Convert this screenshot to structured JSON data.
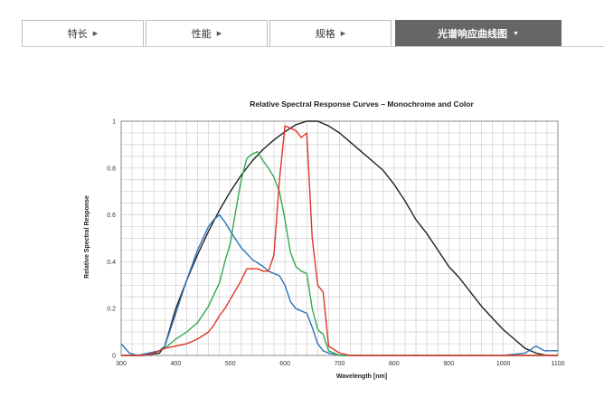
{
  "tabs": [
    {
      "label": "特长",
      "arrow": "▶",
      "active": false
    },
    {
      "label": "性能",
      "arrow": "▶",
      "active": false
    },
    {
      "label": "规格",
      "arrow": "▶",
      "active": false
    },
    {
      "label": "光谱响应曲线图",
      "arrow": "▼",
      "active": true
    }
  ],
  "chart_data": {
    "type": "line",
    "title": "Relative Spectral Response Curves – Monochrome and Color",
    "xlabel": "Wavelength [nm]",
    "ylabel": "Relative Spectral Response",
    "xlim": [
      300,
      1100
    ],
    "ylim": [
      0,
      1
    ],
    "x_ticks": [
      "300",
      "400",
      "500",
      "600",
      "700",
      "800",
      "900",
      "1000",
      "1100"
    ],
    "y_ticks": [
      "0",
      "0.2",
      "0.4",
      "0.6",
      "0.8",
      "1"
    ],
    "grid": true,
    "legend": "none",
    "series": [
      {
        "color": "#222222",
        "points": [
          [
            300,
            0
          ],
          [
            340,
            0
          ],
          [
            370,
            0.01
          ],
          [
            380,
            0.04
          ],
          [
            400,
            0.2
          ],
          [
            420,
            0.32
          ],
          [
            440,
            0.43
          ],
          [
            460,
            0.53
          ],
          [
            480,
            0.62
          ],
          [
            500,
            0.7
          ],
          [
            520,
            0.77
          ],
          [
            540,
            0.83
          ],
          [
            560,
            0.88
          ],
          [
            580,
            0.92
          ],
          [
            600,
            0.955
          ],
          [
            620,
            0.985
          ],
          [
            640,
            1.0
          ],
          [
            660,
            1.0
          ],
          [
            680,
            0.98
          ],
          [
            700,
            0.95
          ],
          [
            720,
            0.91
          ],
          [
            740,
            0.87
          ],
          [
            760,
            0.83
          ],
          [
            780,
            0.79
          ],
          [
            800,
            0.73
          ],
          [
            820,
            0.66
          ],
          [
            840,
            0.58
          ],
          [
            860,
            0.52
          ],
          [
            880,
            0.45
          ],
          [
            900,
            0.38
          ],
          [
            920,
            0.33
          ],
          [
            940,
            0.27
          ],
          [
            960,
            0.21
          ],
          [
            980,
            0.16
          ],
          [
            1000,
            0.11
          ],
          [
            1020,
            0.07
          ],
          [
            1040,
            0.03
          ],
          [
            1060,
            0.01
          ],
          [
            1080,
            0
          ],
          [
            1100,
            0
          ]
        ]
      },
      {
        "color": "#2d73b8",
        "points": [
          [
            300,
            0.05
          ],
          [
            315,
            0.01
          ],
          [
            330,
            0
          ],
          [
            350,
            0.01
          ],
          [
            370,
            0.02
          ],
          [
            380,
            0.04
          ],
          [
            400,
            0.18
          ],
          [
            420,
            0.32
          ],
          [
            440,
            0.45
          ],
          [
            460,
            0.55
          ],
          [
            470,
            0.58
          ],
          [
            480,
            0.6
          ],
          [
            490,
            0.57
          ],
          [
            500,
            0.53
          ],
          [
            520,
            0.46
          ],
          [
            540,
            0.41
          ],
          [
            560,
            0.38
          ],
          [
            570,
            0.36
          ],
          [
            580,
            0.35
          ],
          [
            590,
            0.34
          ],
          [
            600,
            0.3
          ],
          [
            610,
            0.23
          ],
          [
            620,
            0.2
          ],
          [
            630,
            0.19
          ],
          [
            640,
            0.18
          ],
          [
            650,
            0.12
          ],
          [
            660,
            0.05
          ],
          [
            670,
            0.02
          ],
          [
            680,
            0.01
          ],
          [
            700,
            0
          ],
          [
            1000,
            0
          ],
          [
            1040,
            0.01
          ],
          [
            1060,
            0.04
          ],
          [
            1075,
            0.02
          ],
          [
            1100,
            0.02
          ]
        ]
      },
      {
        "color": "#33a853",
        "points": [
          [
            300,
            0
          ],
          [
            340,
            0
          ],
          [
            360,
            0.01
          ],
          [
            380,
            0.03
          ],
          [
            400,
            0.07
          ],
          [
            420,
            0.1
          ],
          [
            440,
            0.14
          ],
          [
            460,
            0.21
          ],
          [
            480,
            0.31
          ],
          [
            490,
            0.4
          ],
          [
            500,
            0.48
          ],
          [
            510,
            0.62
          ],
          [
            520,
            0.75
          ],
          [
            530,
            0.84
          ],
          [
            540,
            0.86
          ],
          [
            550,
            0.87
          ],
          [
            560,
            0.83
          ],
          [
            570,
            0.8
          ],
          [
            580,
            0.76
          ],
          [
            590,
            0.7
          ],
          [
            600,
            0.58
          ],
          [
            610,
            0.44
          ],
          [
            620,
            0.38
          ],
          [
            630,
            0.36
          ],
          [
            640,
            0.35
          ],
          [
            650,
            0.2
          ],
          [
            660,
            0.11
          ],
          [
            670,
            0.09
          ],
          [
            680,
            0.02
          ],
          [
            700,
            0
          ],
          [
            1100,
            0
          ]
        ]
      },
      {
        "color": "#e0352b",
        "points": [
          [
            300,
            0
          ],
          [
            340,
            0
          ],
          [
            360,
            0.01
          ],
          [
            380,
            0.03
          ],
          [
            400,
            0.04
          ],
          [
            420,
            0.05
          ],
          [
            440,
            0.07
          ],
          [
            460,
            0.1
          ],
          [
            470,
            0.13
          ],
          [
            480,
            0.17
          ],
          [
            490,
            0.2
          ],
          [
            500,
            0.24
          ],
          [
            520,
            0.32
          ],
          [
            530,
            0.37
          ],
          [
            540,
            0.37
          ],
          [
            550,
            0.37
          ],
          [
            560,
            0.36
          ],
          [
            570,
            0.36
          ],
          [
            580,
            0.43
          ],
          [
            590,
            0.75
          ],
          [
            600,
            0.98
          ],
          [
            610,
            0.97
          ],
          [
            620,
            0.96
          ],
          [
            630,
            0.93
          ],
          [
            640,
            0.95
          ],
          [
            650,
            0.5
          ],
          [
            660,
            0.3
          ],
          [
            670,
            0.27
          ],
          [
            680,
            0.04
          ],
          [
            700,
            0.01
          ],
          [
            720,
            0
          ],
          [
            1100,
            0
          ]
        ]
      }
    ]
  }
}
